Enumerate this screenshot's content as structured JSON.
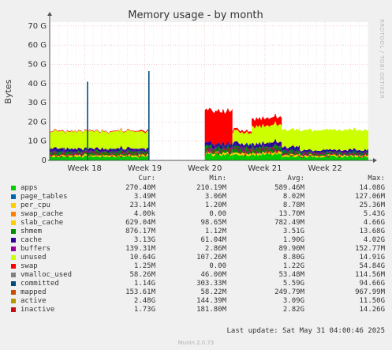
{
  "chart_data": {
    "type": "area",
    "title": "Memory usage - by month",
    "ylabel": "Bytes",
    "side_label": "RRDTOOL / TOBI OETIKER",
    "y_ticks": [
      "0",
      "10 G",
      "20 G",
      "30 G",
      "40 G",
      "50 G",
      "60 G",
      "70 G"
    ],
    "ylim": [
      0,
      72
    ],
    "x_ticks": [
      "Week 18",
      "Week 19",
      "Week 20",
      "Week 21",
      "Week 22"
    ],
    "x_tick_pos": [
      18,
      19,
      20,
      21,
      22
    ],
    "xlim": [
      17.42,
      22.72
    ],
    "grid": true,
    "legend_headers": {
      "cur": "Cur:",
      "min": "Min:",
      "avg": "Avg:",
      "max": "Max:"
    },
    "series": [
      {
        "name": "apps",
        "color": "#00cc00",
        "cur": "270.40M",
        "min": "210.19M",
        "avg": "589.46M",
        "max": "14.08G"
      },
      {
        "name": "page_tables",
        "color": "#0066b3",
        "cur": "3.49M",
        "min": "3.06M",
        "avg": "8.02M",
        "max": "127.06M"
      },
      {
        "name": "per_cpu",
        "color": "#ffcc00",
        "cur": "23.14M",
        "min": "1.20M",
        "avg": "8.78M",
        "max": "25.36M"
      },
      {
        "name": "swap_cache",
        "color": "#ff8000",
        "cur": "4.00k",
        "min": "0.00",
        "avg": "13.70M",
        "max": "5.43G"
      },
      {
        "name": "slab_cache",
        "color": "#ffcc00",
        "cur": "629.04M",
        "min": "98.65M",
        "avg": "782.49M",
        "max": "4.66G"
      },
      {
        "name": "shmem",
        "color": "#008f00",
        "cur": "876.17M",
        "min": "1.12M",
        "avg": "3.51G",
        "max": "13.68G"
      },
      {
        "name": "cache",
        "color": "#330099",
        "cur": "3.13G",
        "min": "61.04M",
        "avg": "1.90G",
        "max": "4.02G"
      },
      {
        "name": "buffers",
        "color": "#990099",
        "cur": "139.31M",
        "min": "2.86M",
        "avg": "89.90M",
        "max": "152.77M"
      },
      {
        "name": "unused",
        "color": "#ccff00",
        "cur": "10.64G",
        "min": "107.26M",
        "avg": "8.80G",
        "max": "14.91G"
      },
      {
        "name": "swap",
        "color": "#ff0000",
        "cur": "1.25M",
        "min": "0.00",
        "avg": "1.22G",
        "max": "54.84G"
      },
      {
        "name": "vmalloc_used",
        "color": "#808080",
        "cur": "58.26M",
        "min": "46.00M",
        "avg": "53.48M",
        "max": "114.56M"
      },
      {
        "name": "committed",
        "color": "#004c7a",
        "cur": "1.14G",
        "min": "303.33M",
        "avg": "5.59G",
        "max": "94.66G"
      },
      {
        "name": "mapped",
        "color": "#c75000",
        "cur": "153.61M",
        "min": "58.22M",
        "avg": "249.79M",
        "max": "967.99M"
      },
      {
        "name": "active",
        "color": "#b39800",
        "cur": "2.48G",
        "min": "144.39M",
        "avg": "3.09G",
        "max": "11.50G"
      },
      {
        "name": "inactive",
        "color": "#c21010",
        "cur": "1.73G",
        "min": "181.80M",
        "avg": "2.82G",
        "max": "14.26G"
      }
    ],
    "stacked_profile": {
      "description": "approximate stacked layers in data units (G) over week number",
      "segments": [
        {
          "x": [
            17.42,
            18.9
          ],
          "apps": 2,
          "slab": 0.8,
          "shmem": 2,
          "cache": 1.5,
          "unused": 9,
          "swap": 0.3
        },
        {
          "x": [
            18.9,
            19.07
          ],
          "apps": 2,
          "slab": 0.8,
          "shmem": 2,
          "cache": 1.5,
          "unused": 9,
          "swap": 0.6
        },
        {
          "x": [
            20.0,
            20.46
          ],
          "apps": 3,
          "slab": 1,
          "shmem": 3,
          "cache": 2,
          "unused": 0,
          "swap": 17
        },
        {
          "x": [
            20.46,
            20.78
          ],
          "apps": 3,
          "slab": 1,
          "shmem": 3,
          "cache": 2,
          "unused": 6,
          "swap": 1
        },
        {
          "x": [
            20.78,
            21.28
          ],
          "apps": 3,
          "slab": 1,
          "shmem": 3,
          "cache": 2,
          "unused": 9,
          "swap": 4
        },
        {
          "x": [
            21.28,
            21.58
          ],
          "apps": 2,
          "slab": 1,
          "shmem": 2,
          "cache": 2,
          "unused": 9,
          "swap": 0
        },
        {
          "x": [
            21.58,
            22.72
          ],
          "apps": 2,
          "slab": 0.8,
          "shmem": 1.5,
          "cache": 1.2,
          "unused": 10.5,
          "swap": 0
        }
      ]
    },
    "spikes": [
      {
        "x": 18.05,
        "value": 41,
        "label": "committed"
      },
      {
        "x": 19.07,
        "value": 46.5,
        "label": "committed"
      }
    ]
  },
  "footer": {
    "last_update": "Last update: Sat May 31 04:00:46 2025",
    "munin": "Munin 2.0.73"
  }
}
